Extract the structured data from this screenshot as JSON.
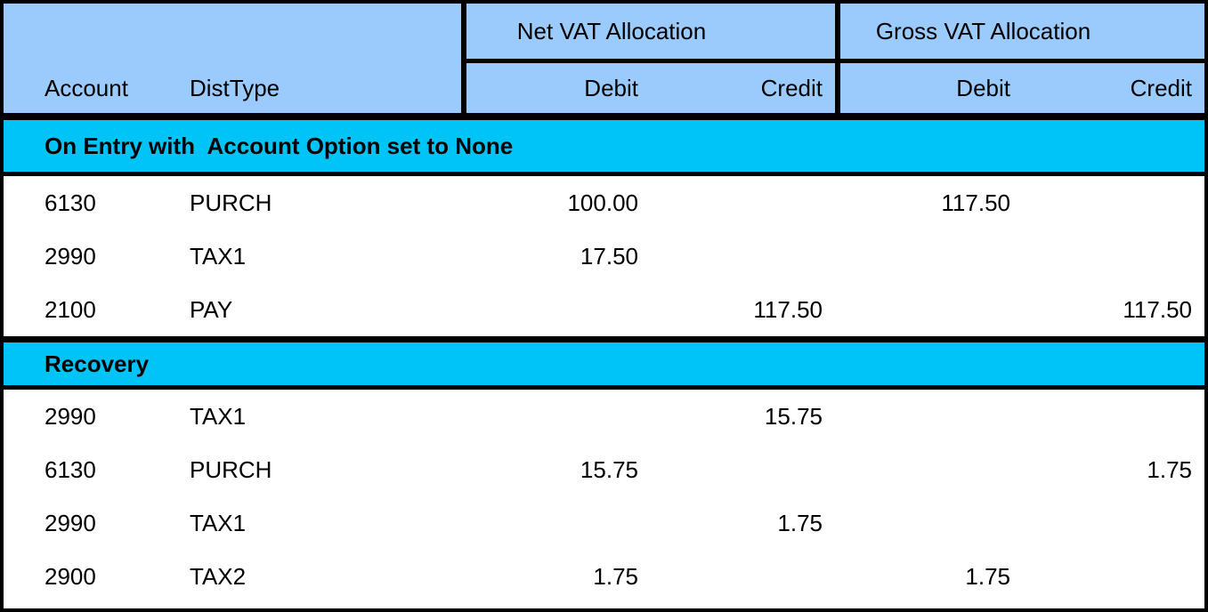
{
  "colors": {
    "header_blue": "#9BCBFC",
    "section_cyan": "#00C4F5",
    "border_black": "#000000",
    "row_bg": "#FFFFFF",
    "text": "#000000"
  },
  "header": {
    "account_label": "Account",
    "disttype_label": "DistType",
    "net_group_label": "Net VAT Allocation",
    "gross_group_label": "Gross VAT Allocation",
    "net_debit_label": "Debit",
    "net_credit_label": "Credit",
    "gross_debit_label": "Debit",
    "gross_credit_label": "Credit"
  },
  "sections": [
    {
      "title": "On Entry with  Account Option set to None",
      "rows": [
        {
          "account": "6130",
          "disttype": "PURCH",
          "net_debit": "100.00",
          "net_credit": "",
          "gross_debit": "117.50",
          "gross_credit": ""
        },
        {
          "account": "2990",
          "disttype": "TAX1",
          "net_debit": "17.50",
          "net_credit": "",
          "gross_debit": "",
          "gross_credit": ""
        },
        {
          "account": "2100",
          "disttype": "PAY",
          "net_debit": "",
          "net_credit": "117.50",
          "gross_debit": "",
          "gross_credit": "117.50"
        }
      ]
    },
    {
      "title": "Recovery",
      "rows": [
        {
          "account": "2990",
          "disttype": "TAX1",
          "net_debit": "",
          "net_credit": "15.75",
          "gross_debit": "",
          "gross_credit": ""
        },
        {
          "account": "6130",
          "disttype": "PURCH",
          "net_debit": "15.75",
          "net_credit": "",
          "gross_debit": "",
          "gross_credit": "1.75"
        },
        {
          "account": "2990",
          "disttype": "TAX1",
          "net_debit": "",
          "net_credit": "1.75",
          "gross_debit": "",
          "gross_credit": ""
        },
        {
          "account": "2900",
          "disttype": "TAX2",
          "net_debit": "1.75",
          "net_credit": "",
          "gross_debit": "1.75",
          "gross_credit": ""
        }
      ]
    }
  ]
}
